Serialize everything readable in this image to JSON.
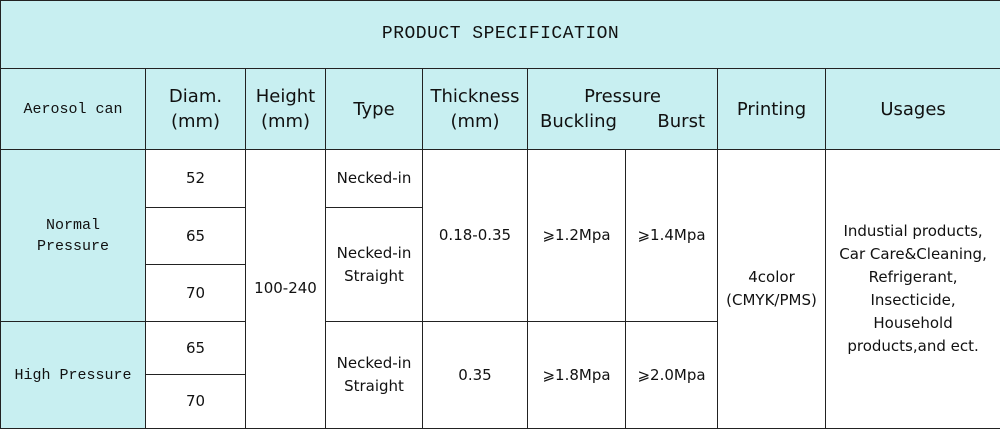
{
  "title": "PRODUCT SPECIFICATION",
  "header": {
    "aerosol_can": "Aerosol can",
    "diam": [
      "Diam.",
      "(mm)"
    ],
    "height": [
      "Height",
      "(mm)"
    ],
    "type": "Type",
    "thickness": [
      "Thickness",
      "(mm)"
    ],
    "pressure": "Pressure",
    "buckling": "Buckling",
    "burst": "Burst",
    "printing": "Printing",
    "usages": "Usages"
  },
  "groups": [
    {
      "label": [
        "Normal",
        "Pressure"
      ],
      "diameters": [
        "52",
        "65",
        "70"
      ],
      "types": [
        [
          "Necked-in"
        ],
        [
          "Necked-in",
          "Straight"
        ]
      ],
      "thickness": "0.18-0.35",
      "buckling": "⩾1.2Mpa",
      "burst": "⩾1.4Mpa"
    },
    {
      "label": [
        "High Pressure"
      ],
      "diameters": [
        "65",
        "70"
      ],
      "types": [
        [
          "Necked-in",
          "Straight"
        ]
      ],
      "thickness": "0.35",
      "buckling": "⩾1.8Mpa",
      "burst": "⩾2.0Mpa"
    }
  ],
  "height": "100-240",
  "printing": [
    "4color",
    "(CMYK/PMS)"
  ],
  "usages": [
    "Industial products,",
    "Car Care&Cleaning,",
    "Refrigerant,",
    "Insecticide,",
    "Household",
    "products,and ect."
  ]
}
